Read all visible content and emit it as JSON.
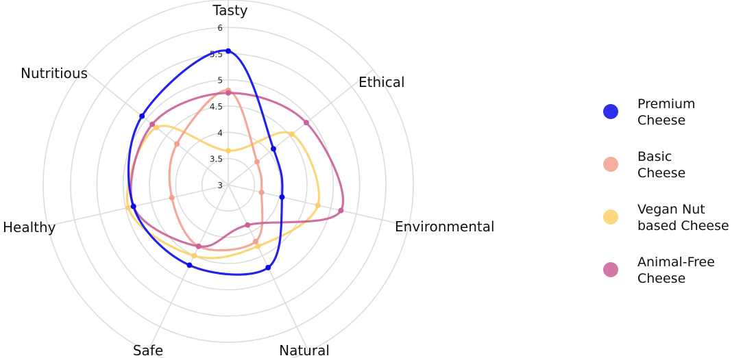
{
  "chart_data": {
    "type": "radar",
    "title": "",
    "axes": [
      "Tasty",
      "Ethical",
      "Environmental",
      "Natural",
      "Safe",
      "Healthy",
      "Nutritious"
    ],
    "r_ticks": [
      "3",
      "3.5",
      "4",
      "4.5",
      "5",
      "5.5",
      "6"
    ],
    "rlim": [
      3,
      6
    ],
    "grid": true,
    "legend_position": "right",
    "series": [
      {
        "name": "Premium\nCheese",
        "color": "#0a0ae8",
        "values": [
          5.55,
          4.1,
          4.05,
          4.75,
          4.7,
          4.85,
          5.1
        ]
      },
      {
        "name": "Basic\nCheese",
        "color": "#f2a08e",
        "values": [
          4.8,
          3.7,
          3.65,
          4.2,
          4.3,
          4.1,
          4.25
        ]
      },
      {
        "name": "Vegan Nut\nbased Cheese",
        "color": "#fbd06a",
        "values": [
          3.65,
          4.55,
          4.75,
          4.3,
          4.5,
          4.95,
          4.75
        ]
      },
      {
        "name": "Animal-Free\nCheese",
        "color": "#c9609a",
        "values": [
          4.75,
          4.9,
          5.2,
          3.85,
          4.3,
          4.85,
          4.85
        ]
      }
    ]
  }
}
